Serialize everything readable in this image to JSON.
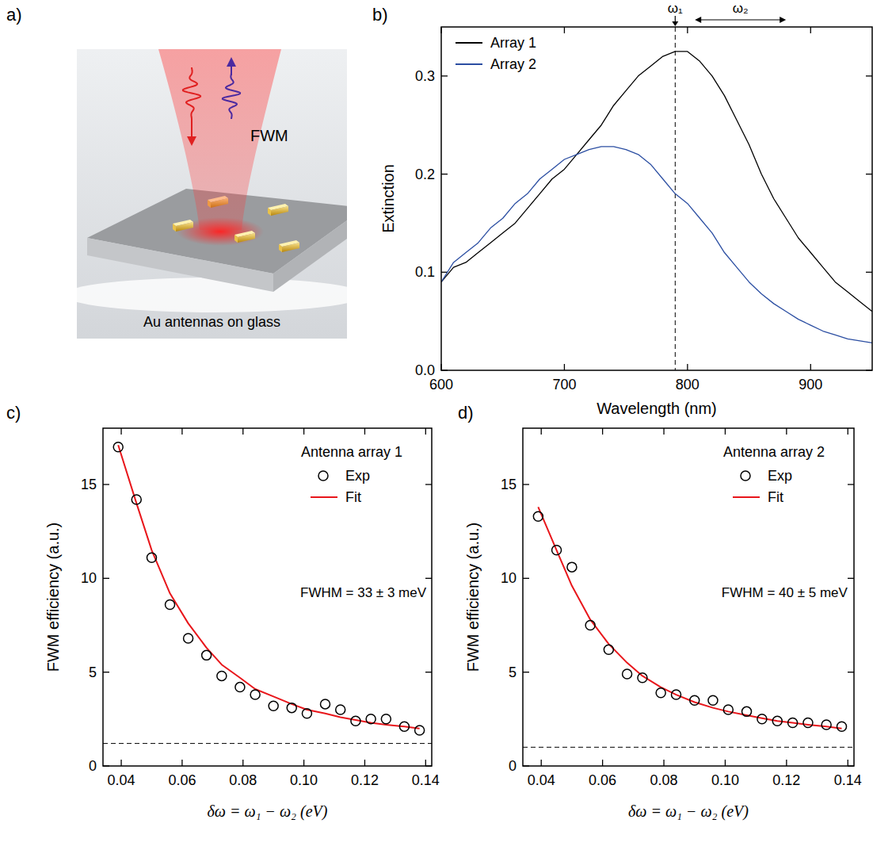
{
  "illustration": {
    "panel": "a)",
    "signal_label": "FWM",
    "caption": "Au antennas on glass"
  },
  "chart_data": [
    {
      "panel": "b)",
      "type": "line",
      "x_label": "Wavelength (nm)",
      "y_label": "Extinction",
      "x": [
        600,
        610,
        620,
        630,
        640,
        650,
        660,
        670,
        680,
        690,
        700,
        710,
        720,
        730,
        740,
        750,
        760,
        770,
        780,
        790,
        800,
        810,
        820,
        830,
        840,
        850,
        860,
        870,
        880,
        890,
        900,
        910,
        920,
        930,
        940,
        950
      ],
      "xlim": [
        600,
        950
      ],
      "ylim": [
        0,
        0.35
      ],
      "xticks": [
        600,
        700,
        800,
        900
      ],
      "yticks": [
        {
          "value": 0,
          "label": "0.0"
        },
        0.1,
        0.2,
        0.3
      ],
      "legend": "top-left",
      "series": [
        {
          "name": "Array 1",
          "color": "#000000",
          "values": [
            0.09,
            0.105,
            0.11,
            0.12,
            0.13,
            0.14,
            0.15,
            0.165,
            0.18,
            0.195,
            0.205,
            0.22,
            0.235,
            0.25,
            0.27,
            0.285,
            0.3,
            0.31,
            0.32,
            0.325,
            0.325,
            0.315,
            0.3,
            0.28,
            0.255,
            0.23,
            0.2,
            0.175,
            0.155,
            0.135,
            0.12,
            0.105,
            0.09,
            0.08,
            0.07,
            0.06
          ]
        },
        {
          "name": "Array 2",
          "color": "#2b4ea2",
          "values": [
            0.09,
            0.11,
            0.12,
            0.13,
            0.145,
            0.155,
            0.17,
            0.18,
            0.195,
            0.205,
            0.215,
            0.22,
            0.225,
            0.228,
            0.228,
            0.225,
            0.22,
            0.21,
            0.195,
            0.18,
            0.17,
            0.155,
            0.14,
            0.12,
            0.105,
            0.09,
            0.078,
            0.068,
            0.06,
            0.052,
            0.046,
            0.04,
            0.036,
            0.032,
            0.03,
            0.028
          ]
        }
      ],
      "annotations": [
        {
          "text": "ω₁",
          "x": 790,
          "line_style": "dashed"
        },
        {
          "text": "ω₂",
          "x_range": [
            806,
            880
          ]
        }
      ]
    },
    {
      "panel": "c)",
      "type": "scatter",
      "x_label": "δω = ω₁ − ω₂ (eV)",
      "y_label": "FWM efficiency (a.u.)",
      "x": [
        0.039,
        0.045,
        0.05,
        0.056,
        0.062,
        0.068,
        0.073,
        0.079,
        0.084,
        0.09,
        0.096,
        0.101,
        0.107,
        0.112,
        0.117,
        0.122,
        0.127,
        0.133,
        0.138
      ],
      "xlim": [
        0.034,
        0.142
      ],
      "ylim": [
        0,
        18
      ],
      "xticks": [
        0.04,
        0.06,
        0.08,
        {
          "value": 0.1,
          "label": "0.10"
        },
        0.12,
        0.14
      ],
      "yticks": [
        0,
        5,
        10,
        15
      ],
      "legend": "top-right",
      "legend_title": "Antenna array 1",
      "series": [
        {
          "name": "Exp",
          "type": "scatter",
          "marker": "circle",
          "color": "#000000",
          "values": [
            17.0,
            14.2,
            11.1,
            8.6,
            6.8,
            5.9,
            4.8,
            4.2,
            3.8,
            3.2,
            3.1,
            2.8,
            3.3,
            3.0,
            2.4,
            2.5,
            2.5,
            2.1,
            1.9
          ]
        },
        {
          "name": "Fit",
          "type": "line",
          "color": "#e8161b",
          "values": [
            17.1,
            14.0,
            11.5,
            9.2,
            7.6,
            6.3,
            5.4,
            4.7,
            4.1,
            3.7,
            3.3,
            3.0,
            2.8,
            2.6,
            2.45,
            2.3,
            2.2,
            2.1,
            2.0
          ]
        }
      ],
      "annotations": [
        {
          "text": "FWHM = 33 ± 3 meV"
        }
      ],
      "reference_line": {
        "y": 1.2,
        "line_style": "dashed"
      }
    },
    {
      "panel": "d)",
      "type": "scatter",
      "x_label": "δω = ω₁ − ω₂ (eV)",
      "y_label": "FWM efficiency (a.u.)",
      "x": [
        0.039,
        0.045,
        0.05,
        0.056,
        0.062,
        0.068,
        0.073,
        0.079,
        0.084,
        0.09,
        0.096,
        0.101,
        0.107,
        0.112,
        0.117,
        0.122,
        0.127,
        0.133,
        0.138
      ],
      "xlim": [
        0.034,
        0.142
      ],
      "ylim": [
        0,
        18
      ],
      "xticks": [
        0.04,
        0.06,
        0.08,
        {
          "value": 0.1,
          "label": "0.10"
        },
        0.12,
        0.14
      ],
      "yticks": [
        0,
        5,
        10,
        15
      ],
      "legend": "top-right",
      "legend_title": "Antenna array 2",
      "series": [
        {
          "name": "Exp",
          "type": "scatter",
          "marker": "circle",
          "color": "#000000",
          "values": [
            13.3,
            11.5,
            10.6,
            7.5,
            6.2,
            4.9,
            4.7,
            3.9,
            3.8,
            3.5,
            3.5,
            3.0,
            2.9,
            2.5,
            2.4,
            2.3,
            2.3,
            2.2,
            2.1
          ]
        },
        {
          "name": "Fit",
          "type": "line",
          "color": "#e8161b",
          "values": [
            13.8,
            11.5,
            9.6,
            7.8,
            6.5,
            5.5,
            4.8,
            4.2,
            3.8,
            3.4,
            3.1,
            2.9,
            2.7,
            2.55,
            2.4,
            2.3,
            2.2,
            2.1,
            2.0
          ]
        }
      ],
      "annotations": [
        {
          "text": "FWHM = 40 ± 5 meV"
        }
      ],
      "reference_line": {
        "y": 1.0,
        "line_style": "dashed"
      }
    }
  ]
}
